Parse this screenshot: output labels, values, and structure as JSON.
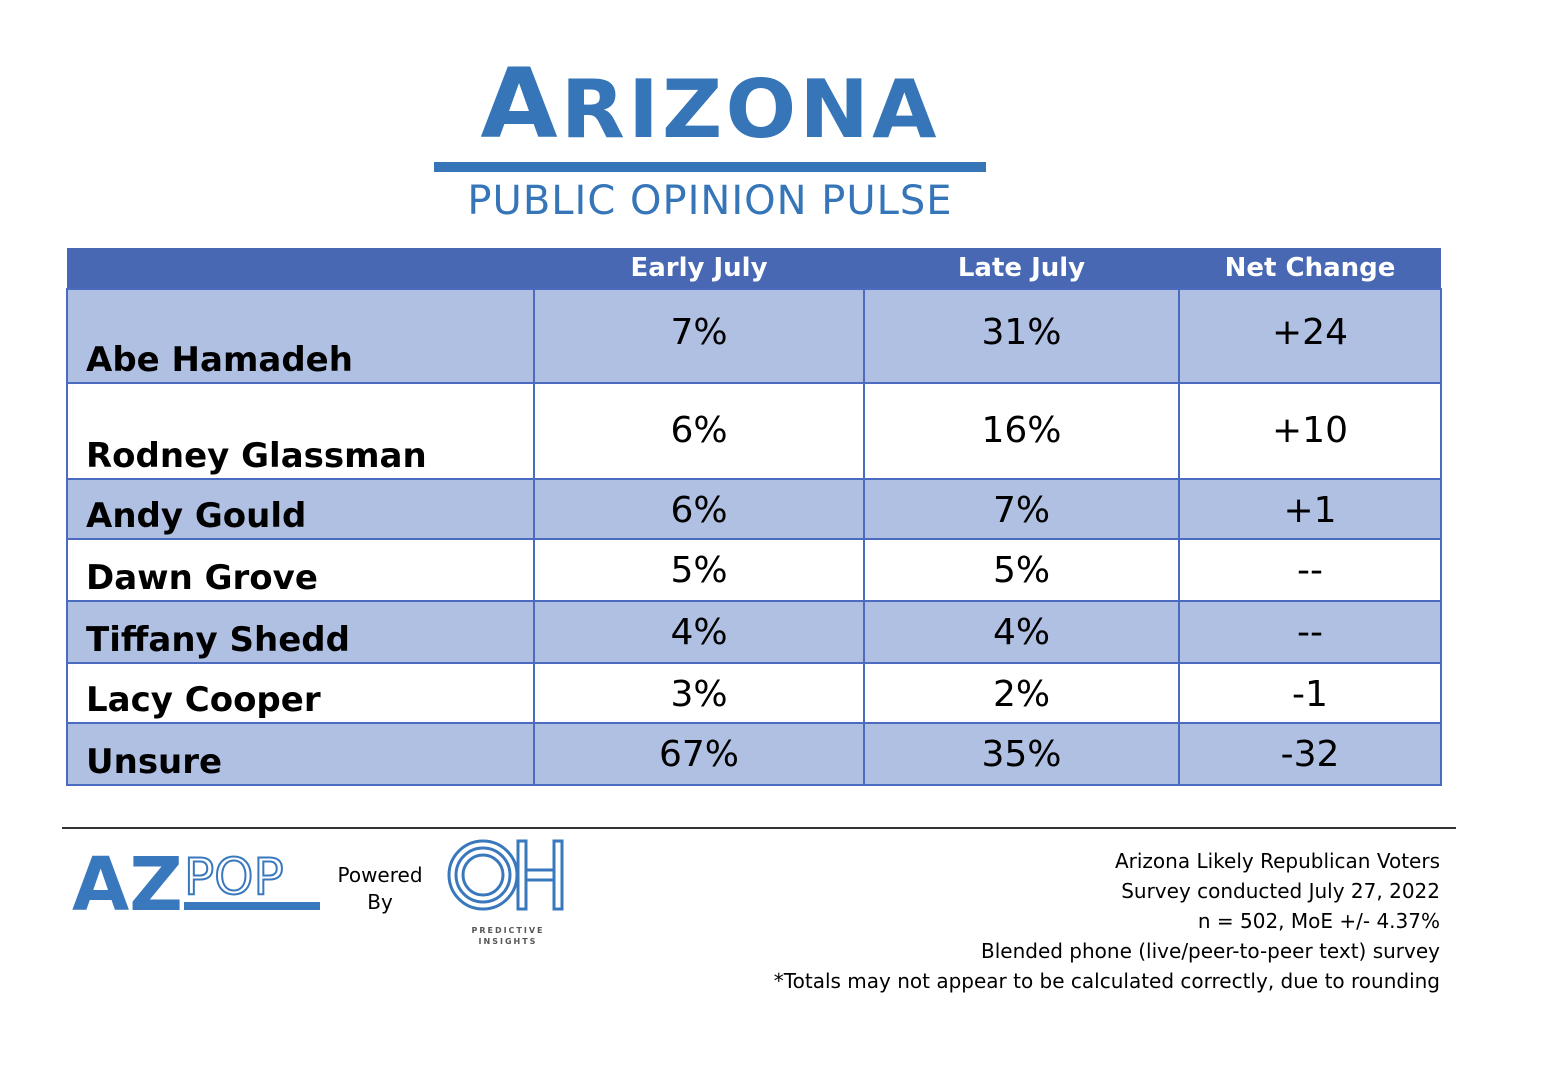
{
  "brand": {
    "title_first": "A",
    "title_rest": "RIZONA",
    "subtitle": "PUBLIC OPINION PULSE",
    "color": "#3575b8"
  },
  "chart_data": {
    "type": "table",
    "columns": [
      "",
      "Early July",
      "Late July",
      "Net Change"
    ],
    "rows": [
      {
        "name": "Abe Hamadeh",
        "early": "7%",
        "late": "31%",
        "net": "+24"
      },
      {
        "name": "Rodney Glassman",
        "early": "6%",
        "late": "16%",
        "net": "+10"
      },
      {
        "name": "Andy Gould",
        "early": "6%",
        "late": "7%",
        "net": "+1"
      },
      {
        "name": "Dawn Grove",
        "early": "5%",
        "late": "5%",
        "net": "--"
      },
      {
        "name": "Tiffany Shedd",
        "early": "4%",
        "late": "4%",
        "net": "--"
      },
      {
        "name": "Lacy Cooper",
        "early": "3%",
        "late": "2%",
        "net": "-1"
      },
      {
        "name": "Unsure",
        "early": "67%",
        "late": "35%",
        "net": "-32"
      }
    ],
    "header_color": "#4868b4",
    "shade_color": "#b0c0e2"
  },
  "footer": {
    "azpop_logo": {
      "text_a": "AZ",
      "text_b": "POP",
      "icon": "azpop-logo"
    },
    "powered_line1": "Powered",
    "powered_line2": "By",
    "oh_logo": {
      "text": "OH",
      "caption_line1": "PREDICTIVE",
      "caption_line2": "INSIGHTS",
      "icon": "oh-predictive-insights-logo"
    },
    "notes": [
      "Arizona Likely Republican Voters",
      "Survey conducted July 27, 2022",
      "n = 502, MoE +/- 4.37%",
      "Blended phone (live/peer-to-peer text) survey",
      "*Totals may not appear to be calculated correctly, due to rounding"
    ]
  }
}
